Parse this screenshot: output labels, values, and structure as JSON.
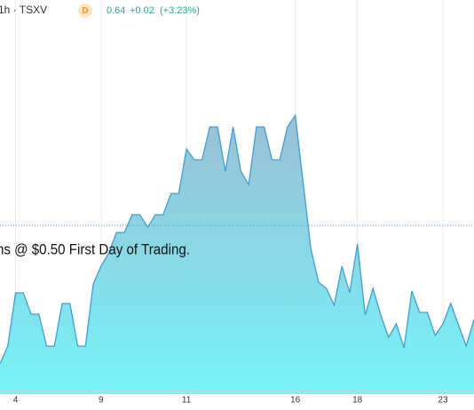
{
  "chart_data": {
    "type": "area",
    "symbol": "1h · TSXV",
    "badge": "D",
    "price": 0.64,
    "change": "+0.02",
    "change_pct": "(+3.23%)",
    "annotation": "ns @ $0.50 First Day of Trading.",
    "line_color": "#3d9fd6",
    "color": "#74d9e6",
    "categories": [
      null,
      null,
      "4",
      null,
      null,
      null,
      null,
      null,
      null,
      null,
      null,
      null,
      null,
      "9",
      null,
      null,
      null,
      null,
      null,
      null,
      null,
      null,
      null,
      null,
      "11",
      null,
      null,
      null,
      null,
      null,
      null,
      null,
      null,
      null,
      null,
      null,
      null,
      null,
      "16",
      null,
      null,
      null,
      null,
      null,
      null,
      null,
      "18",
      null,
      null,
      null,
      null,
      null,
      null,
      null,
      null,
      null,
      null,
      "23",
      null,
      null,
      null,
      null
    ],
    "values": [
      0.484,
      0.504,
      0.564,
      0.564,
      0.54,
      0.54,
      0.504,
      0.504,
      0.552,
      0.552,
      0.504,
      0.504,
      0.574,
      0.594,
      0.609,
      0.632,
      0.632,
      0.652,
      0.652,
      0.638,
      0.652,
      0.652,
      0.676,
      0.676,
      0.726,
      0.714,
      0.714,
      0.751,
      0.751,
      0.701,
      0.751,
      0.701,
      0.686,
      0.751,
      0.751,
      0.714,
      0.714,
      0.751,
      0.764,
      0.689,
      0.614,
      0.576,
      0.569,
      0.55,
      0.594,
      0.564,
      0.619,
      0.539,
      0.569,
      0.539,
      0.514,
      0.529,
      0.502,
      0.566,
      0.542,
      0.542,
      0.516,
      0.529,
      0.552,
      0.528,
      0.504,
      0.534
    ],
    "ylim": [
      0.45,
      0.89
    ],
    "grid": true
  }
}
